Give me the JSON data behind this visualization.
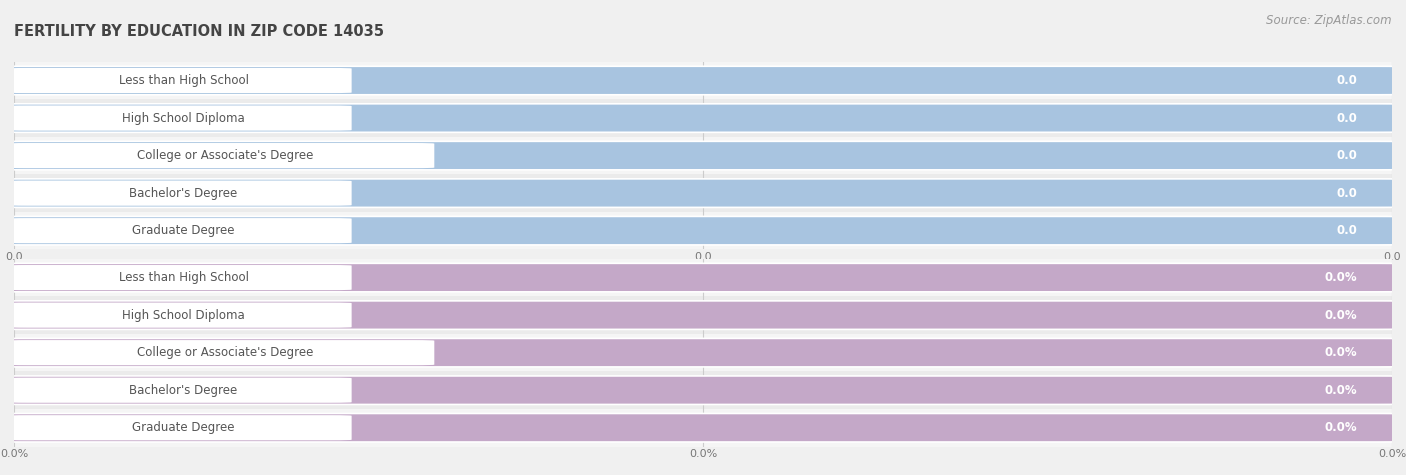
{
  "title": "FERTILITY BY EDUCATION IN ZIP CODE 14035",
  "source": "Source: ZipAtlas.com",
  "categories": [
    "Less than High School",
    "High School Diploma",
    "College or Associate's Degree",
    "Bachelor's Degree",
    "Graduate Degree"
  ],
  "top_values": [
    0.0,
    0.0,
    0.0,
    0.0,
    0.0
  ],
  "bottom_values": [
    0.0,
    0.0,
    0.0,
    0.0,
    0.0
  ],
  "top_bar_color": "#a8c4e0",
  "bottom_bar_color": "#c4a8c8",
  "background_color": "#f0f0f0",
  "row_bg_even": "#f5f5f5",
  "row_bg_odd": "#ebebeb",
  "title_color": "#444444",
  "source_color": "#999999",
  "label_text_color": "#555555",
  "value_text_color_top": "#7799bb",
  "value_text_color_bottom": "#9977aa",
  "x_tick_labels_top": [
    "0.0",
    "0.0",
    "0.0"
  ],
  "x_tick_labels_bottom": [
    "0.0%",
    "0.0%",
    "0.0%"
  ]
}
